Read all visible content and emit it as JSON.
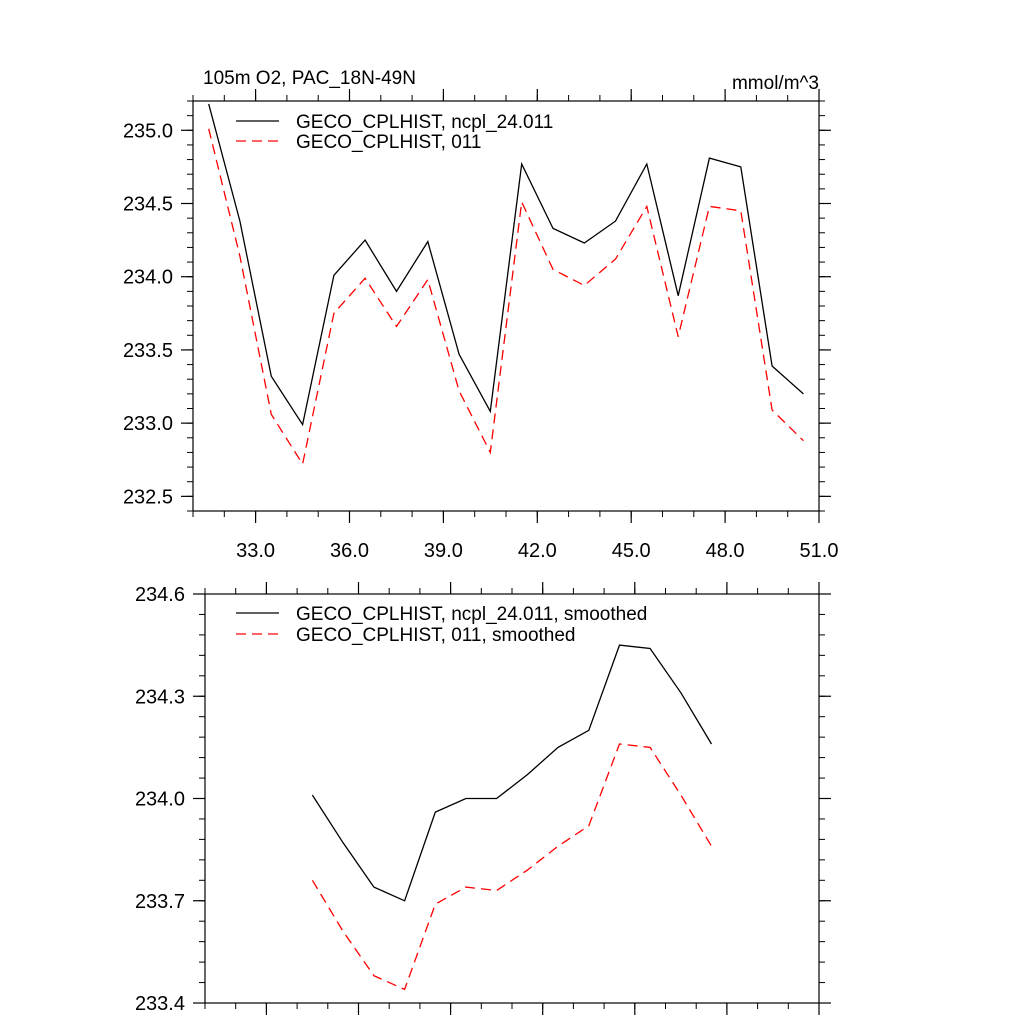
{
  "chart_data": [
    {
      "type": "line",
      "title": "105m O2, PAC_18N-49N",
      "units": "mmol/m^3",
      "xlabel": "",
      "ylabel": "",
      "xlim": [
        31.0,
        51.0
      ],
      "ylim": [
        232.4,
        235.2
      ],
      "xticks": [
        33.0,
        36.0,
        39.0,
        42.0,
        45.0,
        48.0,
        51.0
      ],
      "xtick_labels": [
        "33.0",
        "36.0",
        "39.0",
        "42.0",
        "45.0",
        "48.0",
        "51.0"
      ],
      "yticks": [
        232.5,
        233.0,
        233.5,
        234.0,
        234.5,
        235.0
      ],
      "ytick_labels": [
        "232.5",
        "233.0",
        "233.5",
        "234.0",
        "234.5",
        "235.0"
      ],
      "legend_position": "top-left",
      "x": [
        31.5,
        32.5,
        33.5,
        34.5,
        35.5,
        36.5,
        37.5,
        38.5,
        39.5,
        40.5,
        41.5,
        42.5,
        43.5,
        44.5,
        45.5,
        46.5,
        47.5,
        48.5,
        49.5,
        50.5
      ],
      "series": [
        {
          "name": "GECO_CPLHIST, ncpl_24.011",
          "color": "#000000",
          "dash": "solid",
          "values": [
            235.18,
            234.38,
            233.32,
            232.99,
            234.01,
            234.25,
            233.9,
            234.24,
            233.47,
            233.08,
            234.77,
            234.33,
            234.23,
            234.38,
            234.77,
            233.87,
            234.81,
            234.75,
            233.39,
            233.2
          ]
        },
        {
          "name": "GECO_CPLHIST, 011",
          "color": "#ff0000",
          "dash": "dashed",
          "values": [
            235.01,
            234.14,
            233.06,
            232.72,
            233.75,
            233.99,
            233.66,
            233.98,
            233.22,
            232.8,
            234.51,
            234.05,
            233.94,
            234.12,
            234.48,
            233.59,
            234.48,
            234.45,
            233.09,
            232.88
          ]
        }
      ]
    },
    {
      "type": "line",
      "title": "",
      "xlabel": "",
      "ylabel": "",
      "xlim": [
        31.0,
        51.0
      ],
      "ylim": [
        233.4,
        234.6
      ],
      "xticks": [
        33.0,
        36.0,
        39.0,
        42.0,
        45.0,
        48.0,
        51.0
      ],
      "yticks": [
        233.4,
        233.7,
        234.0,
        234.3,
        234.6
      ],
      "ytick_labels": [
        "233.4",
        "233.7",
        "234.0",
        "234.3",
        "234.6"
      ],
      "legend_position": "top-left",
      "x": [
        34.5,
        35.5,
        36.5,
        37.5,
        38.5,
        39.5,
        40.5,
        41.5,
        42.5,
        43.5,
        44.5,
        45.5,
        46.5,
        47.5
      ],
      "series": [
        {
          "name": "GECO_CPLHIST, ncpl_24.011, smoothed",
          "color": "#000000",
          "dash": "solid",
          "values": [
            234.01,
            233.87,
            233.74,
            233.7,
            233.96,
            234.0,
            234.0,
            234.07,
            234.15,
            234.2,
            234.45,
            234.44,
            234.31,
            234.16
          ]
        },
        {
          "name": "GECO_CPLHIST, 011, smoothed",
          "color": "#ff0000",
          "dash": "dashed",
          "values": [
            233.76,
            233.61,
            233.48,
            233.44,
            233.69,
            233.74,
            233.73,
            233.79,
            233.86,
            233.92,
            234.16,
            234.15,
            234.01,
            233.86
          ]
        }
      ]
    }
  ]
}
